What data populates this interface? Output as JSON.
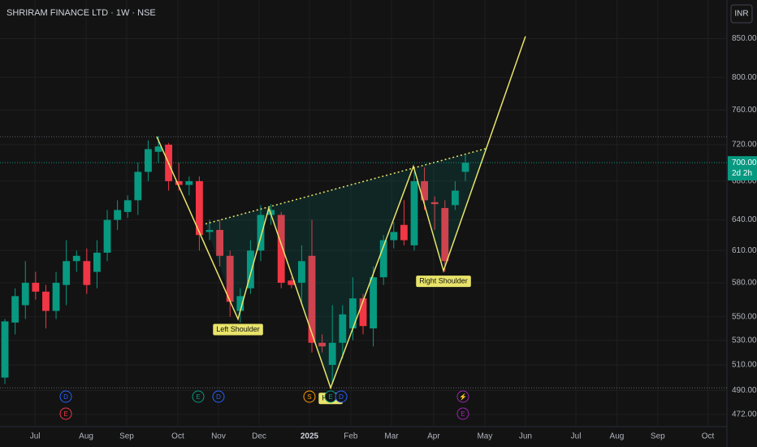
{
  "chart_data": {
    "type": "candlestick",
    "title": "SHRIRAM FINANCE LTD · 1W · NSE",
    "currency": "INR",
    "log_scale": true,
    "grid": true,
    "up_color": "#089981",
    "down_color": "#f23645",
    "pattern_color": "#e9e46a",
    "x": [
      0,
      1,
      2,
      3,
      4,
      5,
      6,
      7,
      8,
      9,
      10,
      11,
      12,
      13,
      14,
      15,
      16,
      17,
      18,
      19,
      20,
      21,
      22,
      23,
      24,
      25,
      26,
      27,
      28,
      29,
      30,
      31,
      32,
      33,
      34,
      35,
      36,
      37,
      38,
      39,
      40,
      41,
      42,
      43,
      44,
      45
    ],
    "open": [
      500,
      545,
      560,
      580,
      572,
      555,
      578,
      600,
      600,
      590,
      608,
      640,
      648,
      660,
      690,
      712,
      720,
      680,
      676,
      680,
      628,
      630,
      605,
      555,
      575,
      610,
      645,
      645,
      582,
      580,
      605,
      528,
      510,
      528,
      540,
      566,
      540,
      585,
      620,
      635,
      615,
      680,
      658,
      652,
      655,
      690
    ],
    "high": [
      548,
      575,
      600,
      590,
      578,
      590,
      620,
      610,
      612,
      620,
      650,
      660,
      665,
      700,
      725,
      730,
      722,
      700,
      685,
      685,
      640,
      640,
      610,
      575,
      620,
      655,
      656,
      648,
      585,
      615,
      640,
      535,
      560,
      560,
      585,
      570,
      595,
      625,
      638,
      660,
      690,
      695,
      664,
      660,
      680,
      710
    ],
    "low": [
      495,
      535,
      548,
      565,
      540,
      548,
      560,
      590,
      570,
      575,
      600,
      630,
      642,
      645,
      680,
      700,
      670,
      670,
      665,
      610,
      620,
      595,
      550,
      545,
      570,
      600,
      635,
      575,
      575,
      560,
      520,
      520,
      495,
      515,
      530,
      535,
      525,
      578,
      612,
      615,
      610,
      650,
      630,
      590,
      650,
      680
    ],
    "close": [
      546,
      568,
      580,
      572,
      555,
      580,
      600,
      605,
      578,
      608,
      640,
      650,
      660,
      690,
      715,
      718,
      680,
      676,
      680,
      625,
      630,
      605,
      563,
      568,
      610,
      645,
      650,
      580,
      578,
      600,
      528,
      525,
      528,
      552,
      566,
      542,
      585,
      620,
      628,
      620,
      680,
      660,
      656,
      600,
      670,
      700
    ],
    "pattern": {
      "x": [
        14.84,
        22.78,
        25.79,
        31.83,
        39.92,
        42.86,
        50.87
      ],
      "y": [
        729,
        548,
        652,
        492,
        696,
        591,
        853
      ]
    },
    "neckline": {
      "x": [
        19.6,
        47.14
      ],
      "y": [
        636,
        716
      ]
    },
    "annotations": [
      {
        "text": "Left Shoulder",
        "point": 1
      },
      {
        "text": "Head",
        "point": 3
      },
      {
        "text": "Right Shoulder",
        "point": 5
      }
    ],
    "levels": [
      729,
      492
    ],
    "last_price": {
      "value": 700,
      "label": "700.00"
    },
    "countdown": "2d 2h",
    "events": [
      {
        "label": "D",
        "x": 5.95,
        "color": "#2962ff"
      },
      {
        "label": "E",
        "x": 5.95,
        "color": "#f23645"
      },
      {
        "label": "E",
        "x": 18.89,
        "color": "#089981"
      },
      {
        "label": "D",
        "x": 20.87,
        "color": "#2962ff"
      },
      {
        "label": "S",
        "x": 29.76,
        "color": "#ff9800"
      },
      {
        "label": "E",
        "x": 31.83,
        "color": "#089981"
      },
      {
        "label": "D",
        "x": 32.86,
        "color": "#2962ff"
      },
      {
        "label": "⚡",
        "x": 44.76,
        "color": "#9c27b0"
      },
      {
        "label": "E",
        "x": 44.76,
        "color": "#9c27b0"
      }
    ],
    "xlim": [
      -0.48,
      70.56
    ],
    "xticks": [
      {
        "value": 2.94,
        "label": "Jul"
      },
      {
        "value": 7.94,
        "label": "Aug"
      },
      {
        "value": 11.9,
        "label": "Sep"
      },
      {
        "value": 16.9,
        "label": "Oct"
      },
      {
        "value": 20.87,
        "label": "Nov"
      },
      {
        "value": 24.84,
        "label": "Dec"
      },
      {
        "value": 29.76,
        "label": "2025"
      },
      {
        "value": 33.8,
        "label": "Feb"
      },
      {
        "value": 37.78,
        "label": "Mar"
      },
      {
        "value": 41.9,
        "label": "Apr"
      },
      {
        "value": 46.9,
        "label": "May"
      },
      {
        "value": 50.87,
        "label": "Jun"
      },
      {
        "value": 55.8,
        "label": "Jul"
      },
      {
        "value": 59.8,
        "label": "Aug"
      },
      {
        "value": 63.8,
        "label": "Sep"
      },
      {
        "value": 68.7,
        "label": "Oct"
      }
    ],
    "ylim": [
      463,
      903
    ],
    "yticks": [
      {
        "value": 472,
        "label": "472.00"
      },
      {
        "value": 490,
        "label": "490.00"
      },
      {
        "value": 510,
        "label": "510.00"
      },
      {
        "value": 530,
        "label": "530.00"
      },
      {
        "value": 550,
        "label": "550.00"
      },
      {
        "value": 580,
        "label": "580.00"
      },
      {
        "value": 610,
        "label": "610.00"
      },
      {
        "value": 640,
        "label": "640.00"
      },
      {
        "value": 680,
        "label": "680.00"
      },
      {
        "value": 720,
        "label": "720.00"
      },
      {
        "value": 760,
        "label": "760.00"
      },
      {
        "value": 800,
        "label": "800.00"
      },
      {
        "value": 850,
        "label": "850.00"
      }
    ]
  }
}
